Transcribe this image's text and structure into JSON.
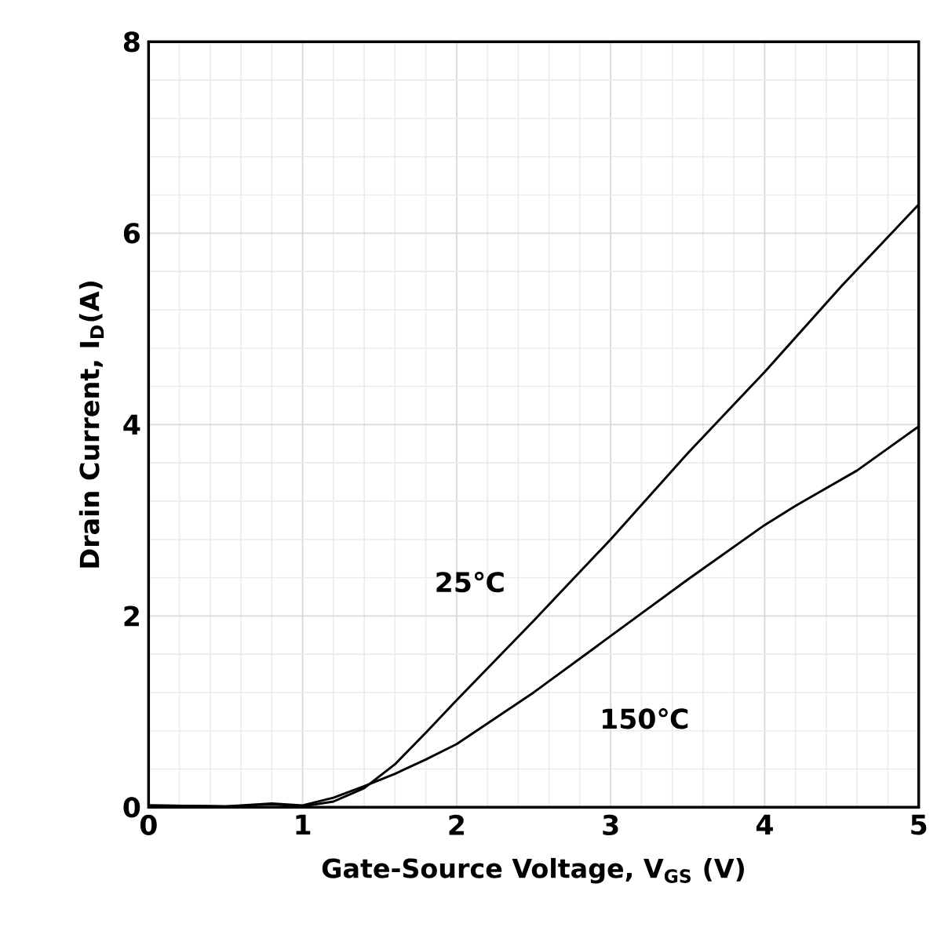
{
  "chart_data": {
    "type": "line",
    "xlabel": "Gate-Source Voltage,  V$_{GS}$  (V)",
    "ylabel": "Drain Current,  I$_{D}$(A)",
    "xlim": [
      0,
      5
    ],
    "ylim": [
      0,
      8
    ],
    "xticks": [
      0,
      1,
      2,
      3,
      4,
      5
    ],
    "yticks": [
      0,
      2,
      4,
      6,
      8
    ],
    "grid": true,
    "legend": false,
    "marker": "none",
    "line_style": "solid",
    "series": [
      {
        "name": "25℃",
        "color": "#000000",
        "x": [
          0,
          0.5,
          0.8,
          1.0,
          1.2,
          1.4,
          1.6,
          1.8,
          2.0,
          2.5,
          3.0,
          3.5,
          4.0,
          4.5,
          5.0
        ],
        "values": [
          0.02,
          0.01,
          0.03,
          0.01,
          0.06,
          0.2,
          0.45,
          0.78,
          1.12,
          1.95,
          2.8,
          3.7,
          4.55,
          5.45,
          6.3
        ]
      },
      {
        "name": "150℃",
        "color": "#000000",
        "x": [
          0,
          0.5,
          0.8,
          1.0,
          1.2,
          1.4,
          1.6,
          1.8,
          2.0,
          2.5,
          3.0,
          3.5,
          4.0,
          4.2,
          4.6,
          5.0
        ],
        "values": [
          0.02,
          0.01,
          0.04,
          0.02,
          0.1,
          0.22,
          0.35,
          0.5,
          0.66,
          1.2,
          1.79,
          2.38,
          2.95,
          3.15,
          3.52,
          3.98
        ]
      }
    ]
  }
}
